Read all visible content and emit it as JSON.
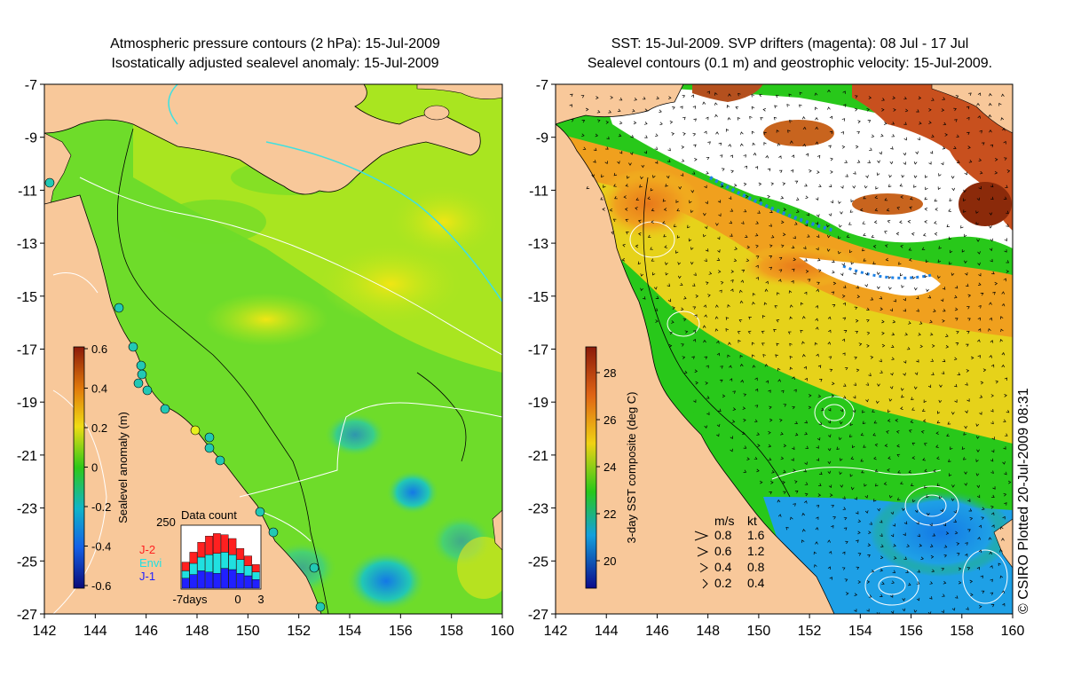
{
  "left_panel": {
    "title_line1": "Atmospheric pressure contours (2 hPa): 15-Jul-2009",
    "title_line2": "Isostatically adjusted sealevel anomaly: 15-Jul-2009",
    "colorbar": {
      "label": "Sealevel anomaly (m)",
      "ticks": [
        "0.6",
        "0.4",
        "0.2",
        "0",
        "-0.2",
        "-0.4",
        "-0.6"
      ]
    },
    "data_count": {
      "title": "Data count",
      "y_max_label": "250",
      "x_labels": [
        "-7days",
        "0",
        "3"
      ],
      "legend": [
        {
          "name": "J-2",
          "color": "#ff2020"
        },
        {
          "name": "Envi",
          "color": "#20e0e0"
        },
        {
          "name": "J-1",
          "color": "#2020ff"
        }
      ],
      "bars_j1": [
        40,
        55,
        70,
        65,
        60,
        80,
        75,
        60,
        50,
        35
      ],
      "bars_envi": [
        30,
        45,
        55,
        70,
        80,
        65,
        60,
        55,
        40,
        30
      ],
      "bars_j2": [
        35,
        45,
        60,
        75,
        80,
        70,
        65,
        45,
        40,
        30
      ]
    }
  },
  "right_panel": {
    "title_line1": "SST: 15-Jul-2009. SVP drifters (magenta): 08 Jul - 17 Jul",
    "title_line2": "Sealevel contours (0.1 m) and geostrophic velocity: 15-Jul-2009.",
    "colorbar": {
      "label": "3-day SST composite (deg C)",
      "ticks": [
        "28",
        "26",
        "24",
        "22",
        "20"
      ]
    },
    "velocity_legend": {
      "header_ms": "m/s",
      "header_kt": "kt",
      "rows": [
        {
          "ms": "0.8",
          "kt": "1.6"
        },
        {
          "ms": "0.6",
          "kt": "1.2"
        },
        {
          "ms": "0.4",
          "kt": "0.8"
        },
        {
          "ms": "0.2",
          "kt": "0.4"
        }
      ]
    },
    "credit": "© CSIRO Plotted 20-Jul-2009 08:31"
  },
  "axes": {
    "x_ticks": [
      "142",
      "144",
      "146",
      "148",
      "150",
      "152",
      "154",
      "156",
      "158",
      "160"
    ],
    "y_ticks": [
      "-7",
      "-9",
      "-11",
      "-13",
      "-15",
      "-17",
      "-19",
      "-21",
      "-23",
      "-25",
      "-27"
    ]
  },
  "colors": {
    "land": "#f8c89a",
    "ocean_green": "#6edc2a",
    "ocean_yellowgreen": "#b4e61e",
    "ocean_yellow": "#e6e61a",
    "ocean_cyan": "#22c8b4",
    "ocean_blue": "#1478e6",
    "sst_orange": "#f0a01e",
    "sst_red": "#c83c14"
  }
}
